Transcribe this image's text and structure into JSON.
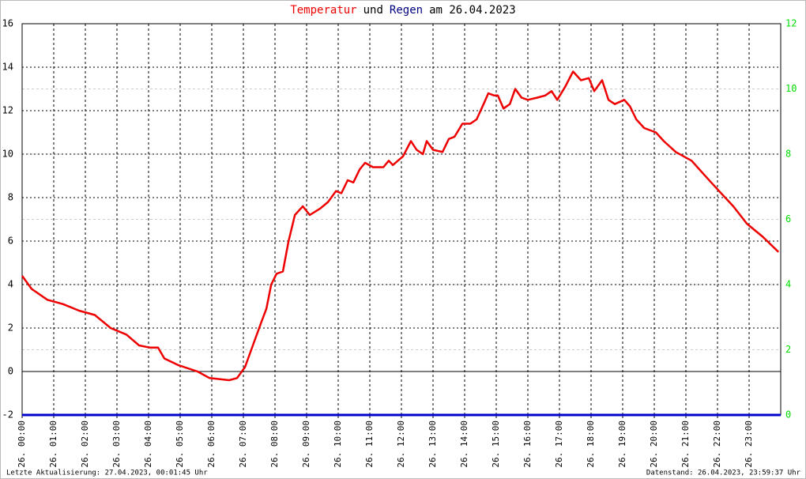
{
  "chart_data": {
    "type": "line",
    "title": [
      {
        "text": "Temperatur",
        "color": "#ee0000"
      },
      {
        "text": "und",
        "color": "#000000"
      },
      {
        "text": "Regen",
        "color": "#000080"
      },
      {
        "text": "am 26.04.2023",
        "color": "#000000"
      }
    ],
    "xlim": [
      0,
      24
    ],
    "xticks": [
      {
        "value": 0,
        "label": "26. 00:00"
      },
      {
        "value": 1,
        "label": "26. 01:00"
      },
      {
        "value": 2,
        "label": "26. 02:00"
      },
      {
        "value": 3,
        "label": "26. 03:00"
      },
      {
        "value": 4,
        "label": "26. 04:00"
      },
      {
        "value": 5,
        "label": "26. 05:00"
      },
      {
        "value": 6,
        "label": "26. 06:00"
      },
      {
        "value": 7,
        "label": "26. 07:00"
      },
      {
        "value": 8,
        "label": "26. 08:00"
      },
      {
        "value": 9,
        "label": "26. 09:00"
      },
      {
        "value": 10,
        "label": "26. 10:00"
      },
      {
        "value": 11,
        "label": "26. 11:00"
      },
      {
        "value": 12,
        "label": "26. 12:00"
      },
      {
        "value": 13,
        "label": "26. 13:00"
      },
      {
        "value": 14,
        "label": "26. 14:00"
      },
      {
        "value": 15,
        "label": "26. 15:00"
      },
      {
        "value": 16,
        "label": "26. 16:00"
      },
      {
        "value": 17,
        "label": "26. 17:00"
      },
      {
        "value": 18,
        "label": "26. 18:00"
      },
      {
        "value": 19,
        "label": "26. 19:00"
      },
      {
        "value": 20,
        "label": "26. 20:00"
      },
      {
        "value": 21,
        "label": "26. 21:00"
      },
      {
        "value": 22,
        "label": "26. 22:00"
      },
      {
        "value": 23,
        "label": "26. 23:00"
      }
    ],
    "ylim": [
      -2,
      16
    ],
    "yticks": [
      -2,
      0,
      2,
      4,
      6,
      8,
      10,
      12,
      14,
      16
    ],
    "y2lim": [
      0,
      12
    ],
    "y2ticks": [
      0,
      2,
      4,
      6,
      8,
      10,
      12
    ],
    "y2color": "#00dd00",
    "grid": true,
    "series": [
      {
        "name": "Temperatur",
        "color": "#ee0000",
        "x": [
          0,
          0.3,
          0.8,
          1.3,
          1.8,
          2.3,
          2.8,
          3.3,
          3.7,
          4.05,
          4.3,
          4.5,
          4.93,
          5.55,
          5.93,
          6.55,
          6.8,
          7.05,
          7.3,
          7.55,
          7.73,
          7.88,
          8.05,
          8.25,
          8.43,
          8.63,
          8.88,
          9.1,
          9.43,
          9.68,
          9.93,
          10.1,
          10.3,
          10.48,
          10.68,
          10.85,
          11.1,
          11.43,
          11.6,
          11.73,
          12.05,
          12.3,
          12.48,
          12.68,
          12.8,
          13.0,
          13.3,
          13.5,
          13.68,
          13.93,
          14.18,
          14.38,
          14.6,
          14.75,
          14.93,
          15.05,
          15.23,
          15.43,
          15.6,
          15.8,
          16.0,
          16.3,
          16.55,
          16.75,
          16.93,
          17.18,
          17.43,
          17.68,
          17.93,
          18.1,
          18.35,
          18.55,
          18.75,
          19.05,
          19.23,
          19.43,
          19.68,
          20.05,
          20.3,
          20.68,
          21.18,
          21.55,
          21.8,
          22.05,
          22.5,
          22.93,
          23.43,
          23.93
        ],
        "values": [
          4.4,
          3.8,
          3.3,
          3.1,
          2.8,
          2.6,
          2.0,
          1.7,
          1.2,
          1.1,
          1.1,
          0.6,
          0.3,
          0.0,
          -0.3,
          -0.4,
          -0.3,
          0.2,
          1.2,
          2.2,
          2.9,
          4.0,
          4.5,
          4.6,
          6.0,
          7.2,
          7.6,
          7.2,
          7.5,
          7.8,
          8.3,
          8.2,
          8.8,
          8.7,
          9.3,
          9.6,
          9.4,
          9.4,
          9.7,
          9.5,
          9.9,
          10.6,
          10.2,
          10.0,
          10.6,
          10.2,
          10.1,
          10.7,
          10.8,
          11.4,
          11.4,
          11.6,
          12.3,
          12.8,
          12.7,
          12.7,
          12.1,
          12.3,
          13.0,
          12.6,
          12.5,
          12.6,
          12.7,
          12.9,
          12.5,
          13.1,
          13.8,
          13.4,
          13.5,
          12.9,
          13.4,
          12.5,
          12.3,
          12.5,
          12.2,
          11.6,
          11.2,
          11.0,
          10.6,
          10.1,
          9.7,
          9.1,
          8.7,
          8.3,
          7.6,
          6.8,
          6.2,
          5.5
        ]
      },
      {
        "name": "Regen",
        "color": "#0000cc",
        "axis": "y2",
        "x": [
          0,
          24
        ],
        "values": [
          0,
          0
        ]
      }
    ],
    "footer_left": "Letzte Aktualisierung: 27.04.2023, 00:01:45 Uhr",
    "footer_right": "Datenstand: 26.04.2023, 23:59:37 Uhr"
  }
}
